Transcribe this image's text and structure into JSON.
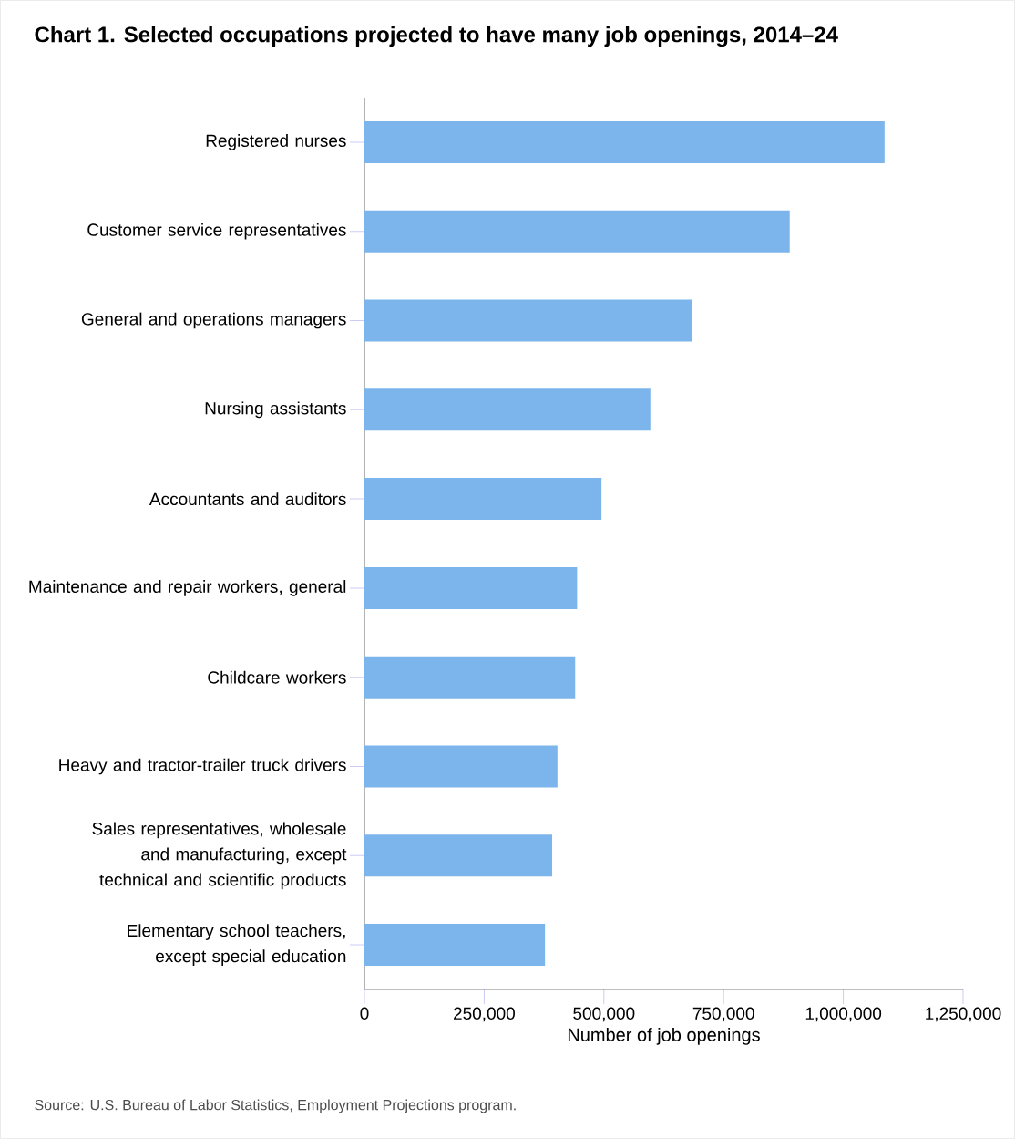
{
  "chart_data": {
    "type": "bar",
    "orientation": "horizontal",
    "title": "Chart 1. Selected occupations projected to have many job openings, 2014–24",
    "categories": [
      "Registered nurses",
      "Customer service representatives",
      "General and operations managers",
      "Nursing assistants",
      "Accountants and auditors",
      "Maintenance and repair workers, general",
      "Childcare workers",
      "Heavy and tractor-trailer truck drivers",
      "Sales representatives, wholesale and manufacturing, except technical and scientific products",
      "Elementary school teachers, except special education"
    ],
    "values": [
      1086000,
      888000,
      685000,
      597000,
      495000,
      444000,
      440000,
      403000,
      392000,
      377000
    ],
    "color": "#7cb5ec",
    "xlabel": "Number of job openings",
    "xlim": [
      0,
      1250000
    ],
    "xticks": [
      0,
      {
        "value": 250000,
        "label": "250,000"
      },
      {
        "value": 500000,
        "label": "500,000"
      },
      {
        "value": 750000,
        "label": "750,000"
      },
      {
        "value": 1000000,
        "label": "1,000,000"
      },
      {
        "value": 1250000,
        "label": "1,250,000"
      }
    ],
    "annotations": [
      "Source: U.S. Bureau of Labor Statistics, Employment Projections program."
    ]
  }
}
